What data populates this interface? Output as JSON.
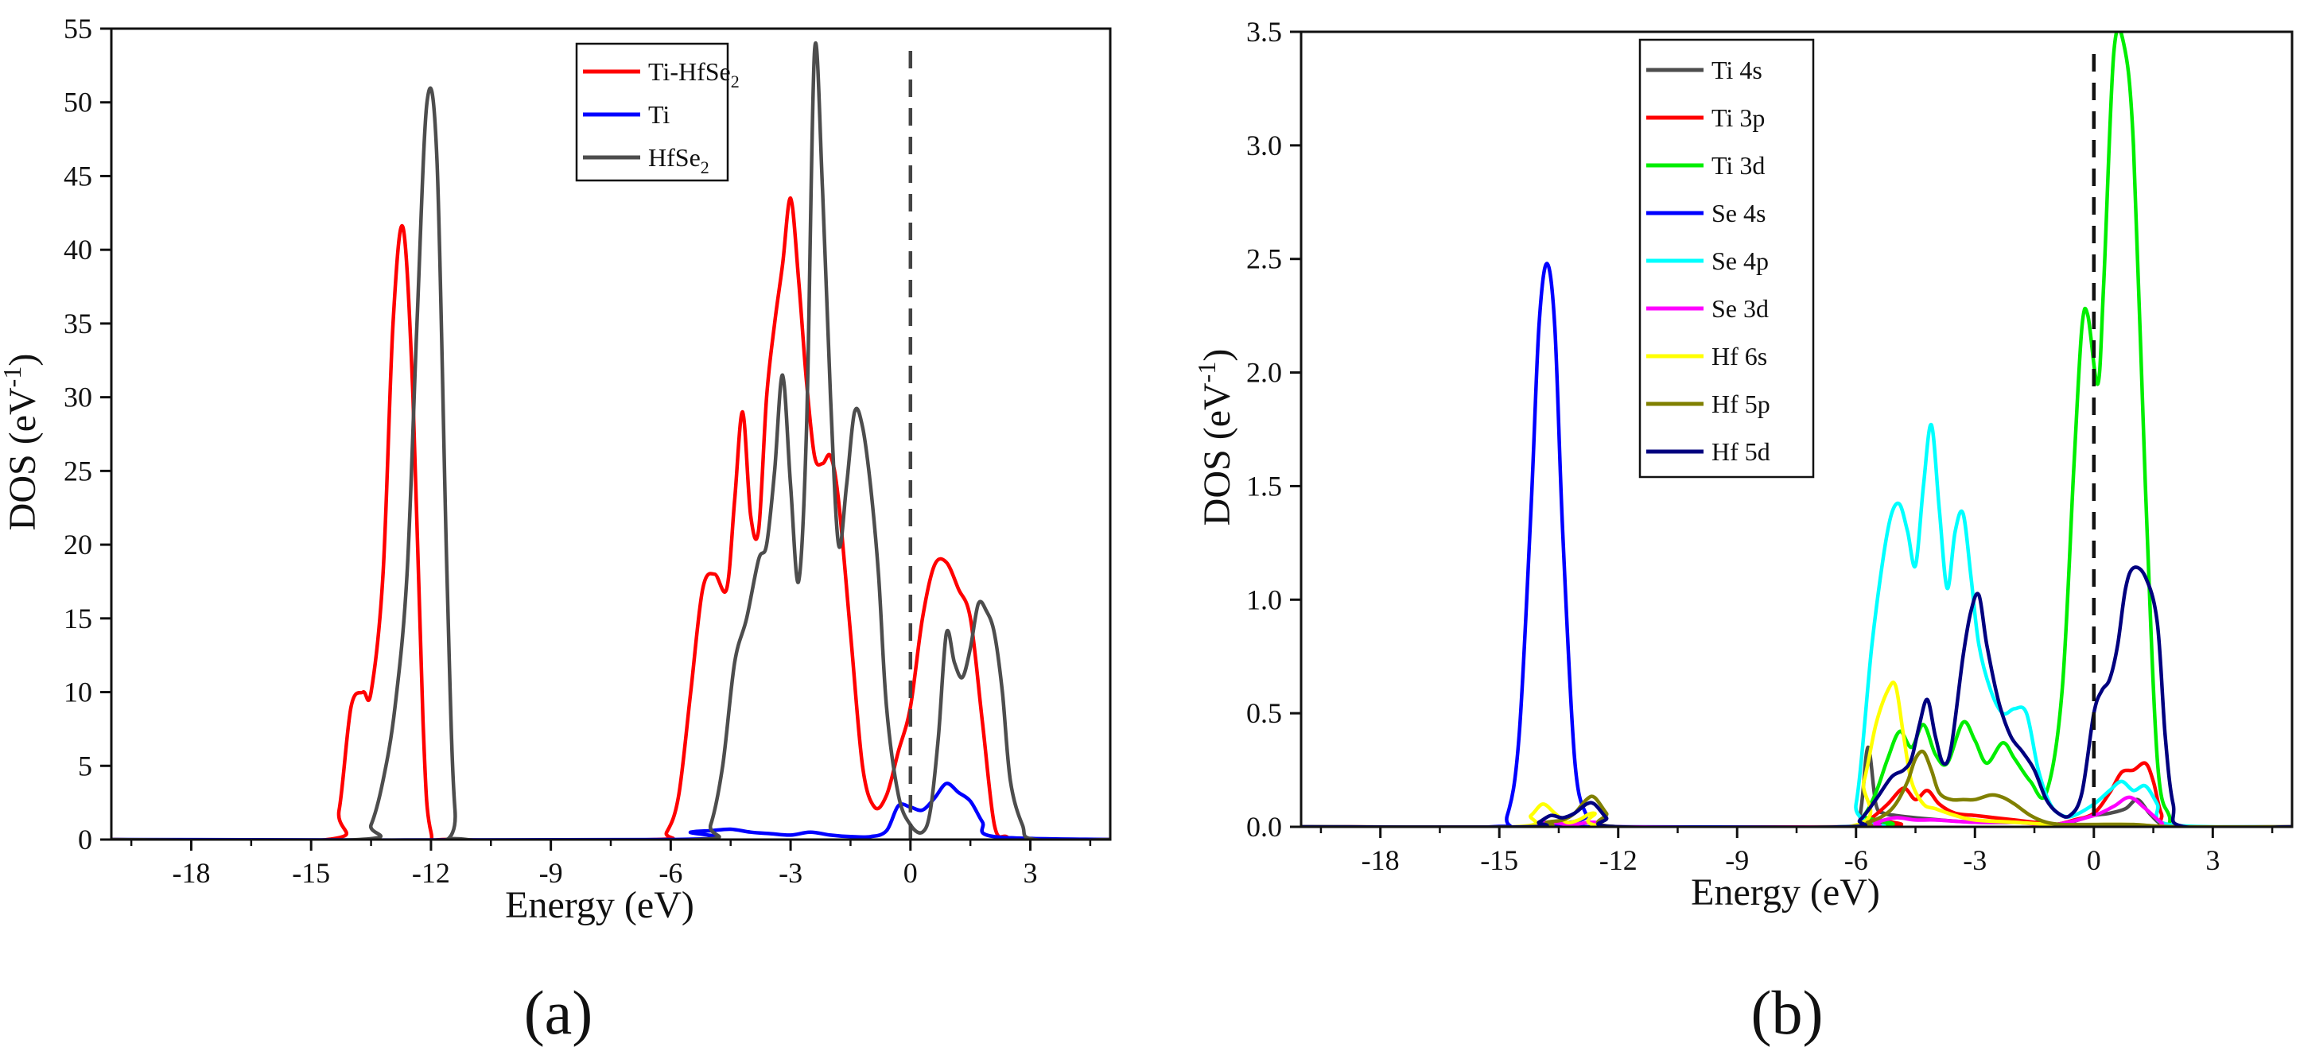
{
  "chart_data": [
    {
      "id": "a",
      "type": "line",
      "panel_label": "(a)",
      "xlabel": "Energy (eV)",
      "ylabel": {
        "main": "DOS (eV",
        "sup": "-1",
        "tail": ")"
      },
      "xlim": [
        -20,
        5
      ],
      "ylim": [
        0,
        55
      ],
      "xticks": [
        -18,
        -15,
        -12,
        -9,
        -6,
        -3,
        0,
        3
      ],
      "yticks": [
        0,
        5,
        10,
        15,
        20,
        25,
        30,
        35,
        40,
        45,
        50,
        55
      ],
      "fermi_level": 0,
      "legend_position": "top-center",
      "series": [
        {
          "name": "Ti-HfSe2",
          "label_parts": [
            "Ti-HfSe",
            "2"
          ],
          "color": "#ff0000",
          "x": [
            -20,
            -14.6,
            -14.3,
            -14.0,
            -13.7,
            -13.5,
            -13.2,
            -12.95,
            -12.7,
            -12.45,
            -12.2,
            -12.0,
            -11.5,
            -6.4,
            -6.1,
            -5.8,
            -5.5,
            -5.2,
            -4.9,
            -4.6,
            -4.4,
            -4.2,
            -4.0,
            -3.8,
            -3.6,
            -3.4,
            -3.2,
            -3.0,
            -2.8,
            -2.6,
            -2.4,
            -2.2,
            -2.0,
            -1.8,
            -1.5,
            -1.2,
            -0.9,
            -0.6,
            -0.3,
            0.0,
            0.3,
            0.6,
            0.9,
            1.2,
            1.5,
            1.8,
            2.1,
            2.4,
            2.8,
            5
          ],
          "y": [
            0,
            0,
            2,
            9,
            10,
            10,
            18,
            35,
            41.5,
            30,
            8,
            0.5,
            0,
            0,
            0.5,
            3,
            10,
            17,
            18,
            17,
            23,
            29,
            22,
            21,
            30,
            35,
            39,
            43.5,
            38,
            31,
            26,
            25.5,
            26,
            23,
            14,
            5,
            2.2,
            3,
            6,
            9,
            15,
            18.6,
            18.8,
            17,
            15,
            8,
            1,
            0.2,
            0,
            0
          ]
        },
        {
          "name": "Ti",
          "label_parts": [
            "Ti"
          ],
          "color": "#0000ff",
          "x": [
            -20,
            -6.0,
            -5.5,
            -5.0,
            -4.5,
            -4.0,
            -3.5,
            -3.0,
            -2.5,
            -2.0,
            -1.5,
            -1.0,
            -0.6,
            -0.3,
            0.0,
            0.3,
            0.6,
            0.9,
            1.2,
            1.5,
            1.8,
            2.1,
            5
          ],
          "y": [
            0,
            0,
            0.5,
            0.6,
            0.7,
            0.5,
            0.4,
            0.3,
            0.5,
            0.3,
            0.2,
            0.2,
            0.6,
            2.3,
            2.2,
            2.0,
            2.8,
            3.8,
            3.2,
            2.6,
            1.2,
            0.2,
            0
          ]
        },
        {
          "name": "HfSe2",
          "label_parts": [
            "HfSe",
            "2"
          ],
          "color": "#4d4d4d",
          "x": [
            -20,
            -13.8,
            -13.5,
            -13.2,
            -12.9,
            -12.6,
            -12.35,
            -12.1,
            -11.85,
            -11.6,
            -11.4,
            -11.1,
            -5.3,
            -5.0,
            -4.7,
            -4.4,
            -4.1,
            -3.8,
            -3.6,
            -3.4,
            -3.2,
            -3.0,
            -2.8,
            -2.6,
            -2.4,
            -2.2,
            -2.0,
            -1.8,
            -1.6,
            -1.4,
            -1.2,
            -1.0,
            -0.8,
            -0.6,
            -0.3,
            0.0,
            0.3,
            0.5,
            0.7,
            0.9,
            1.1,
            1.3,
            1.5,
            1.7,
            1.9,
            2.1,
            2.3,
            2.5,
            2.8,
            3.1,
            5
          ],
          "y": [
            0,
            0,
            1,
            4,
            9,
            18,
            35,
            50,
            46,
            18,
            2,
            0,
            0,
            1,
            5,
            12,
            15,
            19,
            20,
            25,
            31.5,
            24,
            17.5,
            28,
            53.5,
            44,
            30,
            20,
            24,
            29,
            28,
            24,
            18,
            9,
            3,
            1,
            0.5,
            2,
            7,
            14,
            12,
            11,
            13,
            16,
            15.5,
            14,
            10,
            4,
            1,
            0,
            0
          ]
        }
      ]
    },
    {
      "id": "b",
      "type": "line",
      "panel_label": "(b)",
      "xlabel": "Energy (eV)",
      "ylabel": {
        "main": "DOS (eV",
        "sup": "-1",
        "tail": ")"
      },
      "xlim": [
        -20,
        5
      ],
      "ylim": [
        0,
        3.5
      ],
      "xticks": [
        -18,
        -15,
        -12,
        -9,
        -6,
        -3,
        0,
        3
      ],
      "yticks": [
        0.0,
        0.5,
        1.0,
        1.5,
        2.0,
        2.5,
        3.0,
        3.5
      ],
      "ytick_labels": [
        "0.0",
        "0.5",
        "1.0",
        "1.5",
        "2.0",
        "2.5",
        "3.0",
        "3.5"
      ],
      "fermi_level": 0,
      "legend_position": "top-left",
      "series": [
        {
          "name": "Ti 4s",
          "color": "#4d4d4d",
          "x": [
            -20,
            -6.2,
            -5.9,
            -5.7,
            -5.5,
            -5.3,
            -5.0,
            -4.5,
            -3.0,
            -1.5,
            -0.8,
            -0.4,
            0.0,
            0.4,
            0.8,
            1.1,
            1.4,
            1.7,
            2.0,
            5
          ],
          "y": [
            0,
            0,
            0.05,
            0.35,
            0.1,
            0.06,
            0.05,
            0.04,
            0.02,
            0.02,
            0.01,
            0.03,
            0.05,
            0.06,
            0.08,
            0.12,
            0.06,
            0.01,
            0,
            0
          ]
        },
        {
          "name": "Ti 3p",
          "color": "#ff0000",
          "x": [
            -20,
            -6.0,
            -5.6,
            -5.2,
            -4.8,
            -4.5,
            -4.2,
            -3.9,
            -3.5,
            -3.0,
            -2.5,
            -2.0,
            -1.5,
            -1.0,
            -0.5,
            0.0,
            0.4,
            0.7,
            1.0,
            1.3,
            1.5,
            1.7,
            2.0,
            5
          ],
          "y": [
            0,
            0,
            0.04,
            0.1,
            0.17,
            0.12,
            0.16,
            0.1,
            0.06,
            0.05,
            0.04,
            0.03,
            0.02,
            0.01,
            0.03,
            0.06,
            0.15,
            0.24,
            0.25,
            0.28,
            0.2,
            0.06,
            0,
            0
          ]
        },
        {
          "name": "Ti 3d",
          "color": "#00ee00",
          "x": [
            -20,
            -6.2,
            -5.8,
            -5.5,
            -5.2,
            -4.9,
            -4.6,
            -4.3,
            -4.0,
            -3.7,
            -3.3,
            -3.0,
            -2.7,
            -2.3,
            -2.0,
            -1.6,
            -1.2,
            -0.8,
            -0.5,
            -0.3,
            -0.15,
            0.1,
            0.25,
            0.5,
            0.75,
            1.0,
            1.3,
            1.6,
            1.9,
            2.2,
            5
          ],
          "y": [
            0,
            0,
            0.05,
            0.15,
            0.3,
            0.42,
            0.35,
            0.45,
            0.32,
            0.28,
            0.46,
            0.38,
            0.28,
            0.37,
            0.3,
            0.2,
            0.15,
            0.6,
            1.6,
            2.2,
            2.25,
            1.95,
            2.4,
            3.4,
            3.45,
            3.0,
            1.5,
            0.3,
            0.05,
            0,
            0
          ]
        },
        {
          "name": "Se 4s",
          "color": "#0000ff",
          "x": [
            -20,
            -15.2,
            -14.8,
            -14.5,
            -14.2,
            -14.0,
            -13.8,
            -13.6,
            -13.4,
            -13.1,
            -12.8,
            -12.5,
            5
          ],
          "y": [
            0,
            0,
            0.05,
            0.4,
            1.4,
            2.2,
            2.48,
            2.2,
            1.3,
            0.3,
            0.05,
            0,
            0
          ]
        },
        {
          "name": "Se 4p",
          "color": "#00ffff",
          "x": [
            -20,
            -6.4,
            -6.0,
            -5.6,
            -5.3,
            -5.1,
            -4.9,
            -4.7,
            -4.5,
            -4.3,
            -4.1,
            -3.9,
            -3.7,
            -3.5,
            -3.3,
            -3.1,
            -2.9,
            -2.6,
            -2.3,
            -2.0,
            -1.7,
            -1.4,
            -1.1,
            -0.8,
            -0.5,
            0.0,
            0.4,
            0.7,
            1.0,
            1.3,
            1.6,
            1.9,
            5
          ],
          "y": [
            0,
            0,
            0.1,
            0.8,
            1.2,
            1.38,
            1.42,
            1.3,
            1.15,
            1.5,
            1.77,
            1.4,
            1.05,
            1.3,
            1.38,
            1.1,
            0.8,
            0.6,
            0.5,
            0.52,
            0.5,
            0.25,
            0.1,
            0.05,
            0.05,
            0.1,
            0.16,
            0.2,
            0.16,
            0.18,
            0.1,
            0.01,
            0
          ]
        },
        {
          "name": "Se 3d",
          "color": "#ff00ff",
          "x": [
            -20,
            -14.5,
            -13.8,
            -13.2,
            -12.6,
            -12.0,
            -6.0,
            -5.5,
            -5.0,
            -4.5,
            -4.0,
            -3.0,
            -2.0,
            -1.0,
            0.0,
            0.5,
            0.9,
            1.3,
            1.7,
            2.0,
            5
          ],
          "y": [
            0,
            0,
            0.02,
            0.01,
            0.02,
            0,
            0,
            0.02,
            0.04,
            0.03,
            0.03,
            0.02,
            0.02,
            0.01,
            0.05,
            0.09,
            0.13,
            0.08,
            0.02,
            0,
            0
          ]
        },
        {
          "name": "Hf 6s",
          "color": "#ffff00",
          "x": [
            -20,
            -14.6,
            -14.2,
            -13.9,
            -13.6,
            -13.3,
            -13.0,
            -12.6,
            -12.2,
            -6.2,
            -5.8,
            -5.5,
            -5.2,
            -5.0,
            -4.8,
            -4.6,
            -4.3,
            -4.0,
            -3.5,
            -3.0,
            -2.0,
            -1.0,
            0.0,
            1.0,
            2.0,
            5
          ],
          "y": [
            0,
            0,
            0.05,
            0.1,
            0.06,
            0.02,
            0.03,
            0.06,
            0,
            0,
            0.2,
            0.45,
            0.6,
            0.62,
            0.4,
            0.2,
            0.1,
            0.08,
            0.05,
            0.03,
            0.02,
            0.01,
            0.01,
            0.01,
            0,
            0
          ]
        },
        {
          "name": "Hf 5p",
          "color": "#808000",
          "x": [
            -20,
            -14.2,
            -13.8,
            -13.4,
            -13.1,
            -12.8,
            -12.6,
            -12.3,
            -12.0,
            -6.2,
            -5.7,
            -5.3,
            -5.0,
            -4.7,
            -4.5,
            -4.3,
            -4.1,
            -3.9,
            -3.6,
            -3.3,
            -3.0,
            -2.6,
            -2.3,
            -2.0,
            -1.6,
            -1.2,
            -0.8,
            -0.4,
            0.0,
            1.0,
            2.0,
            5
          ],
          "y": [
            0,
            0,
            0.02,
            0.03,
            0.06,
            0.12,
            0.13,
            0.06,
            0,
            0,
            0.02,
            0.05,
            0.1,
            0.2,
            0.3,
            0.33,
            0.25,
            0.15,
            0.12,
            0.12,
            0.12,
            0.14,
            0.13,
            0.1,
            0.05,
            0.02,
            0.01,
            0.01,
            0.01,
            0.01,
            0,
            0
          ]
        },
        {
          "name": "Hf 5d",
          "color": "#00007f",
          "x": [
            -20,
            -14.3,
            -14.0,
            -13.7,
            -13.4,
            -13.1,
            -12.8,
            -12.6,
            -12.3,
            -12.0,
            -6.3,
            -5.9,
            -5.5,
            -5.1,
            -4.8,
            -4.6,
            -4.4,
            -4.2,
            -4.0,
            -3.8,
            -3.6,
            -3.3,
            -3.1,
            -2.9,
            -2.7,
            -2.4,
            -2.1,
            -1.8,
            -1.5,
            -1.2,
            -0.9,
            -0.6,
            -0.3,
            0.0,
            0.2,
            0.4,
            0.6,
            0.8,
            1.0,
            1.3,
            1.6,
            1.8,
            2.0,
            2.3,
            5
          ],
          "y": [
            0,
            0,
            0.02,
            0.05,
            0.04,
            0.06,
            0.1,
            0.1,
            0.04,
            0,
            0,
            0.03,
            0.12,
            0.22,
            0.25,
            0.3,
            0.45,
            0.56,
            0.4,
            0.28,
            0.35,
            0.75,
            0.95,
            1.02,
            0.8,
            0.55,
            0.4,
            0.33,
            0.25,
            0.12,
            0.06,
            0.05,
            0.15,
            0.5,
            0.6,
            0.65,
            0.8,
            1.05,
            1.14,
            1.1,
            0.9,
            0.4,
            0.1,
            0,
            0
          ]
        }
      ]
    }
  ]
}
